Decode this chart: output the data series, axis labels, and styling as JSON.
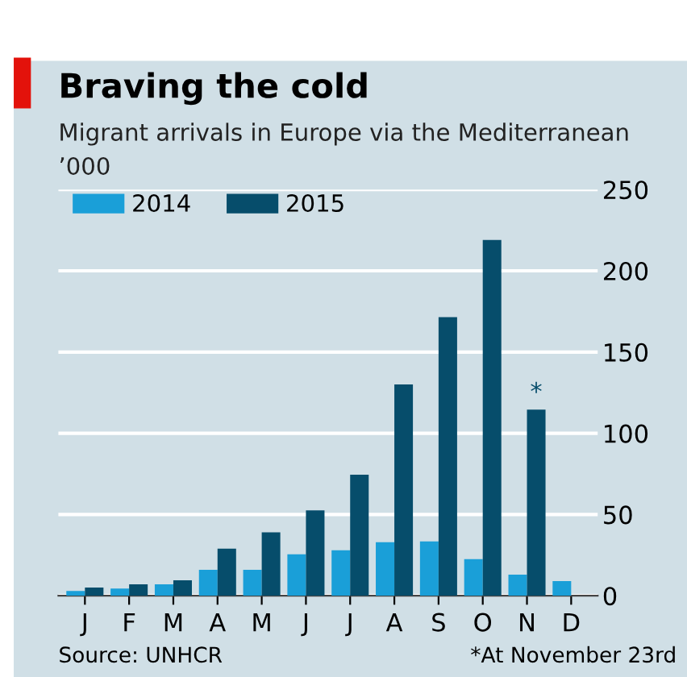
{
  "chart_data": {
    "type": "bar",
    "title": "Braving the cold",
    "subtitle": "Migrant arrivals in Europe via the Mediterranean",
    "ylabel": "’000",
    "categories": [
      "J",
      "F",
      "M",
      "A",
      "M",
      "J",
      "J",
      "A",
      "S",
      "O",
      "N",
      "D"
    ],
    "series": [
      {
        "name": "2014",
        "color": "#1a9fd8",
        "values": [
          3,
          4.5,
          7,
          16,
          16,
          25.5,
          28,
          33,
          33.5,
          22.5,
          13,
          9
        ]
      },
      {
        "name": "2015",
        "color": "#064d6b",
        "values": [
          5,
          7,
          9.5,
          29,
          39,
          52.5,
          74.5,
          130,
          171.5,
          219,
          114.5,
          null
        ]
      }
    ],
    "ylim": [
      0,
      250
    ],
    "yticks": [
      0,
      50,
      100,
      150,
      200,
      250
    ],
    "grid": "y",
    "legend": "top left",
    "annotations": [
      {
        "text": "*",
        "x": "N",
        "y": 114.5
      },
      "Source: UNHCR",
      "*At November 23rd"
    ]
  }
}
